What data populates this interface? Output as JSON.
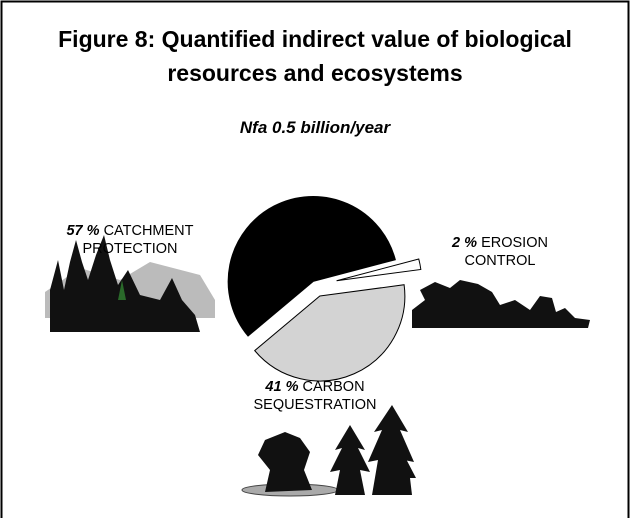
{
  "chart_data": {
    "type": "pie",
    "title": "Figure 8: Quantified indirect value of biological resources and ecosystems",
    "subtitle": "Nfa 0.5 billion/year",
    "categories": [
      "CATCHMENT PROTECTION",
      "EROSION CONTROL",
      "CARBON SEQUESTRATION"
    ],
    "values": [
      57,
      2,
      41
    ],
    "value_labels": [
      "57 %",
      "2 %",
      "41 %"
    ],
    "colors": [
      "#000000",
      "#ffffff",
      "#d3d3d3"
    ]
  }
}
